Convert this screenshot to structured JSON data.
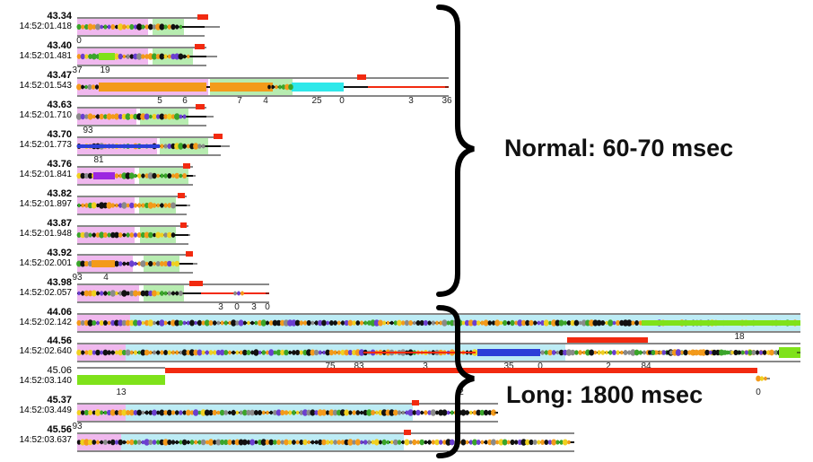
{
  "traces": [
    {
      "value": "43.34",
      "time": "14:52:01.418",
      "nums": [
        {
          "t": "0",
          "x": 88
        }
      ]
    },
    {
      "value": "43.40",
      "time": "14:52:01.481",
      "nums": [
        {
          "t": "37",
          "x": 86
        },
        {
          "t": "19",
          "x": 117
        }
      ]
    },
    {
      "value": "43.47",
      "time": "14:52:01.543",
      "nums": [
        {
          "t": "5",
          "x": 178
        },
        {
          "t": "6",
          "x": 206
        },
        {
          "t": "7",
          "x": 267
        },
        {
          "t": "4",
          "x": 296
        },
        {
          "t": "25",
          "x": 353
        },
        {
          "t": "0",
          "x": 381
        },
        {
          "t": "3",
          "x": 458
        },
        {
          "t": "36",
          "x": 498
        }
      ]
    },
    {
      "value": "43.63",
      "time": "14:52:01.710",
      "nums": [
        {
          "t": "93",
          "x": 98
        }
      ]
    },
    {
      "value": "43.70",
      "time": "14:52:01.773",
      "nums": [
        {
          "t": "81",
          "x": 110
        }
      ]
    },
    {
      "value": "43.76",
      "time": "14:52:01.841",
      "nums": []
    },
    {
      "value": "43.82",
      "time": "14:52:01.897",
      "nums": []
    },
    {
      "value": "43.87",
      "time": "14:52:01.948",
      "nums": []
    },
    {
      "value": "43.92",
      "time": "14:52:02.001",
      "nums": [
        {
          "t": "93",
          "x": 86
        },
        {
          "t": "4",
          "x": 118
        }
      ]
    },
    {
      "value": "43.98",
      "time": "14:52:02.057",
      "nums": [
        {
          "t": "3",
          "x": 246
        },
        {
          "t": "0",
          "x": 264
        },
        {
          "t": "3",
          "x": 283
        },
        {
          "t": "0",
          "x": 298
        }
      ]
    },
    {
      "value": "44.06",
      "time": "14:52:02.142",
      "nums": [
        {
          "t": "18",
          "x": 824
        }
      ]
    },
    {
      "value": "44.56",
      "time": "14:52:02.640",
      "nums": [
        {
          "t": "75",
          "x": 368
        },
        {
          "t": "83",
          "x": 400
        },
        {
          "t": "3",
          "x": 474
        },
        {
          "t": "35",
          "x": 567
        },
        {
          "t": "0",
          "x": 602
        },
        {
          "t": "2",
          "x": 678
        },
        {
          "t": "84",
          "x": 720
        }
      ]
    },
    {
      "value": "45.06",
      "time": "14:52:03.140",
      "nums": [
        {
          "t": "13",
          "x": 135
        },
        {
          "t": "2",
          "x": 514
        },
        {
          "t": "0",
          "x": 845
        }
      ]
    },
    {
      "value": "45.37",
      "time": "14:52:03.449",
      "nums": [
        {
          "t": "93",
          "x": 86
        }
      ]
    },
    {
      "value": "45.56",
      "time": "14:52:03.637",
      "nums": []
    }
  ],
  "annotations": {
    "normal": "Normal: 60-70 msec",
    "long": "Long: 1800 msec"
  },
  "colors": {
    "pink": "#f0b8ee",
    "cyan": "#bdecf5",
    "green": "#b7ecb0",
    "orange": "#f39a1a",
    "red": "#f22a10",
    "bright_cyan": "#2ee8ea",
    "blue": "#2c3fd8",
    "lime": "#7fe21a",
    "purple": "#9b27e0",
    "dark": "#111111"
  }
}
